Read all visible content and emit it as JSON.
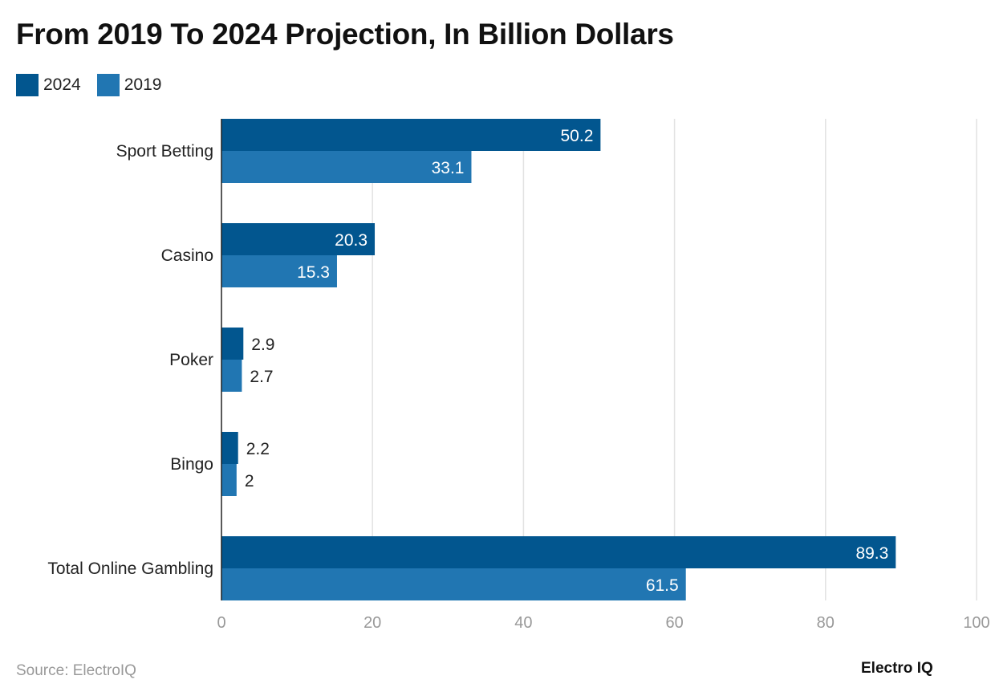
{
  "chart_data": {
    "type": "bar",
    "orientation": "horizontal",
    "title": "From 2019 To 2024 Projection, In Billion Dollars",
    "categories": [
      "Sport Betting",
      "Casino",
      "Poker",
      "Bingo",
      "Total Online Gambling"
    ],
    "series": [
      {
        "name": "2024",
        "color": "#02568f",
        "values": [
          50.2,
          20.3,
          2.9,
          2.2,
          89.3
        ]
      },
      {
        "name": "2019",
        "color": "#2176b2",
        "values": [
          33.1,
          15.3,
          2.7,
          2,
          61.5
        ]
      }
    ],
    "xlim": [
      0,
      100
    ],
    "xticks": [
      0,
      20,
      40,
      60,
      80,
      100
    ],
    "grid": true,
    "legend": "top-left",
    "data_labels": true
  },
  "source": "Source: ElectroIQ",
  "logo": "Electro IQ"
}
